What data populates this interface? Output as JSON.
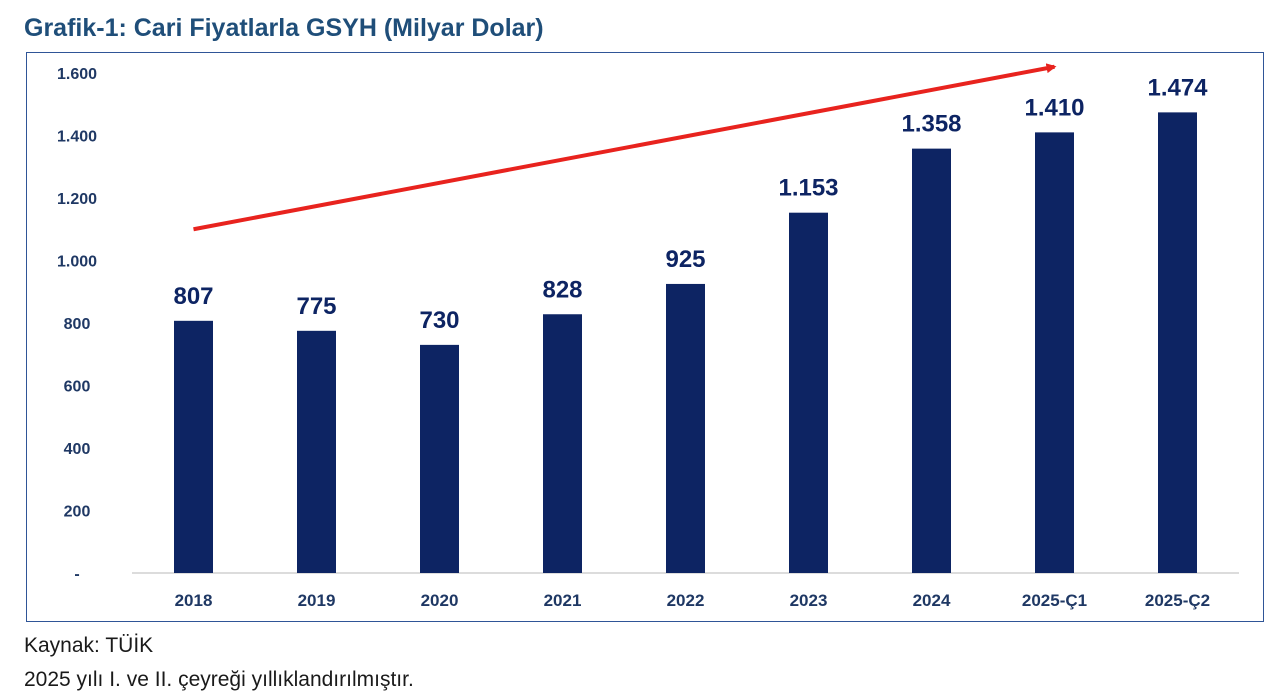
{
  "chart_data": {
    "type": "bar",
    "title": "Grafik-1: Cari Fiyatlarla GSYH (Milyar Dolar)",
    "categories": [
      "2018",
      "2019",
      "2020",
      "2021",
      "2022",
      "2023",
      "2024",
      "2025-Ç1",
      "2025-Ç2"
    ],
    "values": [
      807,
      775,
      730,
      828,
      925,
      1153,
      1358,
      1410,
      1474
    ],
    "value_labels": [
      "807",
      "775",
      "730",
      "828",
      "925",
      "1.153",
      "1.358",
      "1.410",
      "1.474"
    ],
    "ylim": [
      0,
      1600
    ],
    "yticks": [
      0,
      200,
      400,
      600,
      800,
      1000,
      1200,
      1400,
      1600
    ],
    "ytick_labels": [
      "-",
      "200",
      "400",
      "600",
      "800",
      "1.000",
      "1.200",
      "1.400",
      "1.600"
    ],
    "xlabel": "",
    "ylabel": "",
    "grid": false,
    "annotations": [
      {
        "type": "trend-arrow",
        "from_value": 1100,
        "to_value": 1620
      }
    ],
    "colors": {
      "bar": "#0d2463",
      "label": "#0d2463",
      "arrow": "#e8231e",
      "axis_text": "#1f3864"
    }
  },
  "footer": {
    "source": "Kaynak: TÜİK",
    "note": "2025 yılı I. ve II. çeyreği yıllıklandırılmıştır."
  }
}
